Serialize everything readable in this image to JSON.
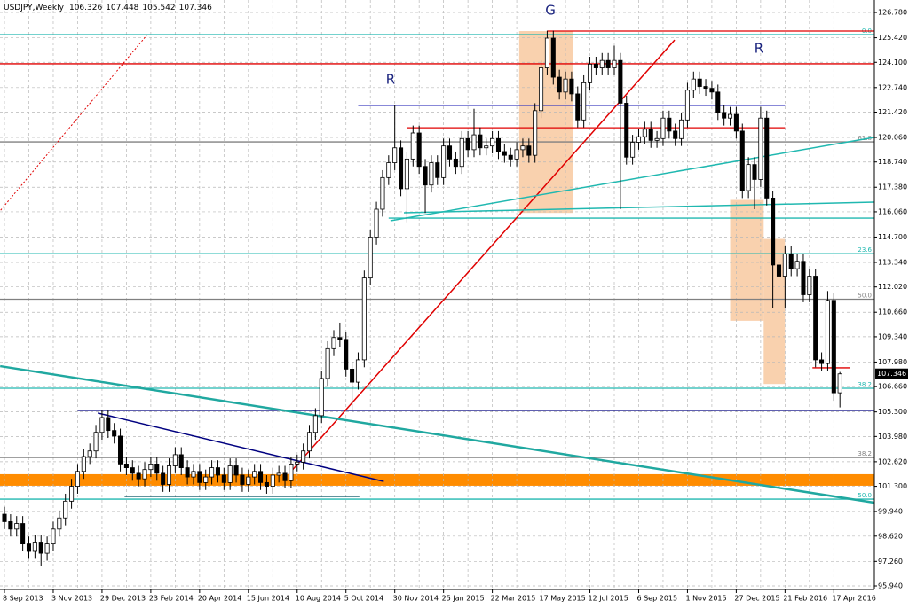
{
  "chart_data": {
    "type": "candlestick",
    "title": "USDJPY,Weekly",
    "categories": [
      "8 Sep 2013",
      null,
      null,
      null,
      null,
      null,
      null,
      null,
      "3 Nov 2013",
      null,
      null,
      null,
      null,
      null,
      null,
      null,
      "29 Dec 2013",
      null,
      null,
      null,
      null,
      null,
      null,
      null,
      "23 Feb 2014",
      null,
      null,
      null,
      null,
      null,
      null,
      null,
      "20 Apr 2014",
      null,
      null,
      null,
      null,
      null,
      null,
      null,
      "15 Jun 2014",
      null,
      null,
      null,
      null,
      null,
      null,
      null,
      "10 Aug 2014",
      null,
      null,
      null,
      null,
      null,
      null,
      null,
      "5 Oct 2014",
      null,
      null,
      null,
      null,
      null,
      null,
      null,
      "30 Nov 2014",
      null,
      null,
      null,
      null,
      null,
      null,
      null,
      "25 Jan 2015",
      null,
      null,
      null,
      null,
      null,
      null,
      null,
      "22 Mar 2015",
      null,
      null,
      null,
      null,
      null,
      null,
      null,
      "17 May 2015",
      null,
      null,
      null,
      null,
      null,
      null,
      null,
      "12 Jul 2015",
      null,
      null,
      null,
      null,
      null,
      null,
      null,
      "6 Sep 2015",
      null,
      null,
      null,
      null,
      null,
      null,
      null,
      "1 Nov 2015",
      null,
      null,
      null,
      null,
      null,
      null,
      null,
      "27 Dec 2015",
      null,
      null,
      null,
      null,
      null,
      null,
      null,
      "21 Feb 2016",
      null,
      null,
      null,
      null,
      null,
      null,
      null,
      "17 Apr 2016",
      null
    ],
    "open": [
      99.8,
      99.4,
      99.0,
      99.3,
      98.2,
      97.8,
      98.3,
      97.7,
      98.2,
      99.0,
      99.6,
      100.5,
      101.3,
      102.1,
      102.9,
      103.2,
      104.2,
      105.0,
      104.3,
      104.0,
      102.5,
      102.3,
      102.0,
      101.7,
      102.2,
      102.5,
      102.0,
      101.4,
      102.4,
      103.0,
      102.3,
      101.8,
      102.1,
      101.5,
      101.8,
      102.3,
      101.9,
      101.5,
      102.4,
      101.9,
      101.4,
      101.8,
      102.1,
      101.5,
      101.3,
      101.9,
      102.0,
      101.6,
      102.5,
      102.6,
      103.2,
      104.2,
      105.1,
      107.1,
      108.7,
      109.3,
      109.2,
      107.6,
      106.9,
      108.1,
      112.5,
      114.7,
      116.2,
      117.9,
      118.7,
      119.5,
      117.3,
      118.9,
      120.3,
      118.5,
      117.5,
      118.7,
      117.9,
      119.6,
      118.9,
      118.5,
      120.0,
      119.4,
      120.2,
      119.5,
      119.6,
      120.0,
      119.3,
      119.1,
      118.9,
      119.4,
      119.6,
      119.1,
      121.5,
      123.8,
      125.4,
      123.3,
      122.5,
      123.2,
      122.4,
      121.0,
      123.0,
      124.0,
      123.8,
      124.2,
      123.8,
      124.2,
      121.9,
      119.0,
      119.8,
      120.1,
      120.5,
      119.9,
      120.0,
      121.1,
      120.4,
      120.0,
      121.0,
      122.6,
      123.2,
      122.8,
      122.7,
      122.5,
      121.4,
      121.1,
      121.3,
      120.4,
      117.2,
      118.6,
      117.8,
      121.1,
      116.8,
      113.2,
      112.6,
      113.8,
      113.0,
      113.4,
      111.6,
      112.6,
      108.1,
      107.9,
      111.3,
      106.326
    ],
    "high": [
      100.2,
      99.8,
      99.7,
      99.7,
      98.6,
      98.7,
      98.7,
      98.6,
      99.4,
      100.0,
      100.9,
      101.7,
      102.5,
      103.3,
      103.6,
      104.6,
      105.4,
      105.4,
      104.7,
      104.4,
      102.9,
      102.7,
      102.4,
      102.6,
      102.9,
      102.9,
      102.4,
      102.8,
      103.4,
      103.4,
      102.7,
      102.5,
      102.5,
      102.2,
      102.7,
      102.7,
      102.3,
      102.8,
      102.8,
      102.3,
      102.2,
      102.5,
      102.5,
      101.9,
      102.3,
      102.4,
      102.4,
      102.9,
      103.0,
      103.6,
      104.6,
      105.5,
      107.5,
      109.1,
      109.7,
      110.1,
      109.6,
      108.0,
      108.5,
      112.9,
      115.1,
      116.6,
      118.3,
      119.1,
      121.8,
      119.9,
      119.3,
      120.7,
      120.7,
      118.9,
      119.1,
      119.1,
      120.0,
      120.0,
      119.3,
      120.4,
      120.4,
      121.6,
      120.6,
      120.0,
      120.4,
      120.4,
      119.7,
      119.5,
      119.8,
      120.0,
      120.0,
      121.9,
      124.2,
      125.8,
      125.8,
      123.7,
      123.6,
      123.6,
      122.8,
      123.4,
      124.4,
      124.4,
      124.6,
      124.6,
      125.0,
      124.6,
      122.3,
      120.2,
      120.5,
      120.9,
      120.9,
      120.4,
      121.5,
      121.5,
      120.8,
      121.4,
      123.0,
      123.6,
      123.6,
      123.2,
      123.1,
      122.9,
      121.8,
      121.7,
      121.7,
      120.8,
      119.0,
      119.0,
      121.7,
      121.5,
      117.2,
      114.7,
      114.2,
      114.2,
      113.8,
      113.8,
      113.0,
      113.0,
      108.5,
      111.8,
      111.7,
      107.448
    ],
    "low": [
      99.0,
      98.6,
      98.6,
      97.8,
      97.4,
      97.4,
      97.0,
      97.3,
      97.8,
      98.6,
      99.2,
      100.1,
      100.9,
      101.7,
      102.5,
      102.8,
      103.8,
      103.9,
      103.6,
      102.1,
      101.9,
      101.6,
      101.3,
      101.3,
      101.8,
      101.6,
      101.0,
      101.0,
      102.0,
      101.9,
      101.4,
      101.4,
      101.1,
      101.1,
      101.4,
      101.5,
      101.1,
      101.1,
      101.5,
      101.0,
      101.0,
      101.4,
      101.1,
      100.9,
      100.9,
      101.5,
      101.2,
      101.2,
      102.1,
      102.2,
      102.8,
      103.8,
      104.7,
      106.7,
      108.3,
      108.8,
      107.2,
      105.3,
      106.5,
      107.7,
      112.1,
      114.3,
      115.8,
      117.5,
      118.3,
      116.9,
      115.5,
      118.5,
      118.1,
      116.0,
      117.1,
      117.5,
      117.5,
      118.5,
      118.1,
      118.1,
      119.0,
      119.0,
      119.1,
      119.1,
      119.2,
      118.9,
      118.7,
      118.5,
      118.5,
      119.0,
      118.7,
      118.7,
      121.1,
      123.4,
      122.9,
      122.1,
      122.1,
      122.0,
      120.6,
      120.6,
      122.6,
      123.4,
      123.4,
      123.4,
      123.4,
      116.2,
      118.6,
      118.6,
      119.4,
      119.7,
      119.5,
      119.5,
      119.6,
      120.0,
      119.6,
      119.6,
      120.6,
      122.2,
      122.4,
      122.3,
      122.1,
      121.0,
      120.7,
      120.7,
      120.0,
      116.8,
      116.8,
      116.2,
      117.4,
      116.4,
      110.9,
      112.2,
      110.9,
      112.6,
      112.6,
      111.2,
      111.2,
      107.7,
      107.5,
      107.5,
      105.9,
      105.542
    ],
    "close": [
      99.4,
      99.0,
      99.3,
      98.2,
      97.8,
      98.3,
      97.7,
      98.2,
      99.0,
      99.6,
      100.5,
      101.3,
      102.1,
      102.9,
      103.2,
      104.2,
      105.0,
      104.3,
      104.0,
      102.5,
      102.3,
      102.0,
      101.7,
      102.2,
      102.5,
      102.0,
      101.4,
      102.4,
      103.0,
      102.3,
      101.8,
      102.1,
      101.5,
      101.8,
      102.3,
      101.9,
      101.5,
      102.4,
      101.9,
      101.4,
      101.8,
      102.1,
      101.5,
      101.3,
      101.9,
      102.0,
      101.6,
      102.5,
      102.6,
      103.2,
      104.2,
      105.1,
      107.1,
      108.7,
      109.3,
      109.2,
      107.6,
      106.9,
      108.1,
      112.5,
      114.7,
      116.2,
      117.9,
      118.7,
      119.5,
      117.3,
      118.9,
      120.3,
      118.5,
      117.5,
      118.7,
      117.9,
      119.6,
      118.9,
      118.5,
      120.0,
      119.4,
      120.2,
      119.5,
      119.6,
      120.0,
      119.3,
      119.1,
      118.9,
      119.4,
      119.6,
      119.1,
      121.5,
      123.8,
      125.4,
      123.3,
      122.5,
      123.2,
      122.4,
      121.0,
      123.0,
      124.0,
      123.8,
      124.2,
      123.8,
      124.2,
      121.9,
      119.0,
      119.8,
      120.1,
      120.5,
      119.9,
      120.0,
      121.1,
      120.4,
      120.0,
      121.0,
      122.6,
      123.2,
      122.8,
      122.7,
      122.5,
      121.4,
      121.1,
      121.3,
      120.4,
      117.2,
      118.6,
      117.8,
      121.1,
      116.8,
      113.2,
      112.6,
      113.8,
      113.0,
      113.4,
      111.6,
      112.6,
      108.1,
      107.9,
      111.3,
      106.326,
      107.346
    ],
    "up_color": "#ffffff",
    "down_color": "#000000",
    "xlim": [
      -0.73,
      142.65
    ],
    "ylim": [
      95.75,
      127.45
    ],
    "yticks": [
      {
        "value": 126.78,
        "label": "126.780"
      },
      {
        "value": 125.42,
        "label": "125.420"
      },
      {
        "value": 124.1,
        "label": "124.100"
      },
      {
        "value": 122.74,
        "label": "122.740"
      },
      {
        "value": 121.42,
        "label": "121.420"
      },
      {
        "value": 120.06,
        "label": "120.060"
      },
      {
        "value": 118.74,
        "label": "118.740"
      },
      {
        "value": 117.38,
        "label": "117.380"
      },
      {
        "value": 116.06,
        "label": "116.060"
      },
      {
        "value": 114.7,
        "label": "114.700"
      },
      {
        "value": 113.34,
        "label": "113.340"
      },
      {
        "value": 112.02,
        "label": "112.020"
      },
      {
        "value": 110.66,
        "label": "110.660"
      },
      {
        "value": 109.34,
        "label": "109.340"
      },
      {
        "value": 107.98,
        "label": "107.980"
      },
      {
        "value": 106.66,
        "label": "106.660"
      },
      {
        "value": 105.3,
        "label": "105.300"
      },
      {
        "value": 103.98,
        "label": "103.980"
      },
      {
        "value": 102.62,
        "label": "102.620"
      },
      {
        "value": 101.3,
        "label": "101.300"
      },
      {
        "value": 99.94,
        "label": "99.940"
      },
      {
        "value": 98.62,
        "label": "98.620"
      },
      {
        "value": 97.26,
        "label": "97.260"
      },
      {
        "value": 95.94,
        "label": "95.940"
      }
    ],
    "grid": true,
    "hlines": [
      {
        "price": 125.59,
        "color": "#20b8b0",
        "label": "0.0"
      },
      {
        "price": 125.78,
        "color": "#e00000",
        "from": 89,
        "to": 142.65
      },
      {
        "price": 124.02,
        "color": "#e00000"
      },
      {
        "price": 121.78,
        "color": "#4040c0",
        "from": 58,
        "to": 128
      },
      {
        "price": 120.58,
        "color": "#e00000",
        "from": 66,
        "to": 128
      },
      {
        "price": 119.82,
        "color": "#808080",
        "label": "61.8"
      },
      {
        "price": 115.72,
        "color": "#20b8b0",
        "from": 63,
        "to": 142.65
      },
      {
        "price": 113.81,
        "color": "#20b8b0",
        "label": "23.6"
      },
      {
        "price": 111.36,
        "color": "#808080",
        "label": "50.0"
      },
      {
        "price": 106.57,
        "color": "#20b8b0",
        "label": "38.2"
      },
      {
        "price": 105.38,
        "color": "#000080",
        "from": 12,
        "to": 142.65
      },
      {
        "price": 102.85,
        "color": "#808080",
        "label": "38.2"
      },
      {
        "price": 100.61,
        "color": "#20b8b0",
        "label": "50.0"
      },
      {
        "price": 107.67,
        "color": "#e00000",
        "from": 132.5,
        "to": 138.7
      }
    ],
    "band": {
      "top": 101.95,
      "bottom": 101.33,
      "color": "#ff8c00"
    },
    "zones": [
      {
        "from": 84.4,
        "to": 93.2,
        "top": 125.78,
        "bottom": 116.0
      },
      {
        "from": 119,
        "to": 124.5,
        "top": 116.7,
        "bottom": 110.2
      },
      {
        "from": 124.5,
        "to": 128,
        "top": 114.6,
        "bottom": 106.8
      }
    ],
    "zone_color": "#f8c9a0",
    "lines": [
      {
        "from": [
          46.6,
          101.95
        ],
        "to": [
          109.9,
          125.3
        ],
        "color": "#e00000",
        "width": 1.5
      },
      {
        "from": [
          -1,
          116.0
        ],
        "to": [
          23.3,
          125.54
        ],
        "color": "#e00000",
        "width": 1,
        "dash": true
      },
      {
        "from": [
          -0.7,
          107.76
        ],
        "to": [
          142.6,
          100.42
        ],
        "color": "#20a8a0",
        "width": 2.5
      },
      {
        "from": [
          15.3,
          105.24
        ],
        "to": [
          62.2,
          101.56
        ],
        "color": "#000080",
        "width": 1.5
      },
      {
        "from": [
          19.7,
          100.76
        ],
        "to": [
          58.2,
          100.76
        ],
        "color": "#005060",
        "width": 1.5
      },
      {
        "from": [
          63.3,
          115.58
        ],
        "to": [
          142.6,
          120.06
        ],
        "color": "#20b8b0",
        "width": 1.5
      },
      {
        "from": [
          65.5,
          116.01
        ],
        "to": [
          142.6,
          116.58
        ],
        "color": "#20b8b0",
        "width": 1.5
      }
    ],
    "annotations": [
      "G",
      "R",
      "R"
    ]
  }
}
